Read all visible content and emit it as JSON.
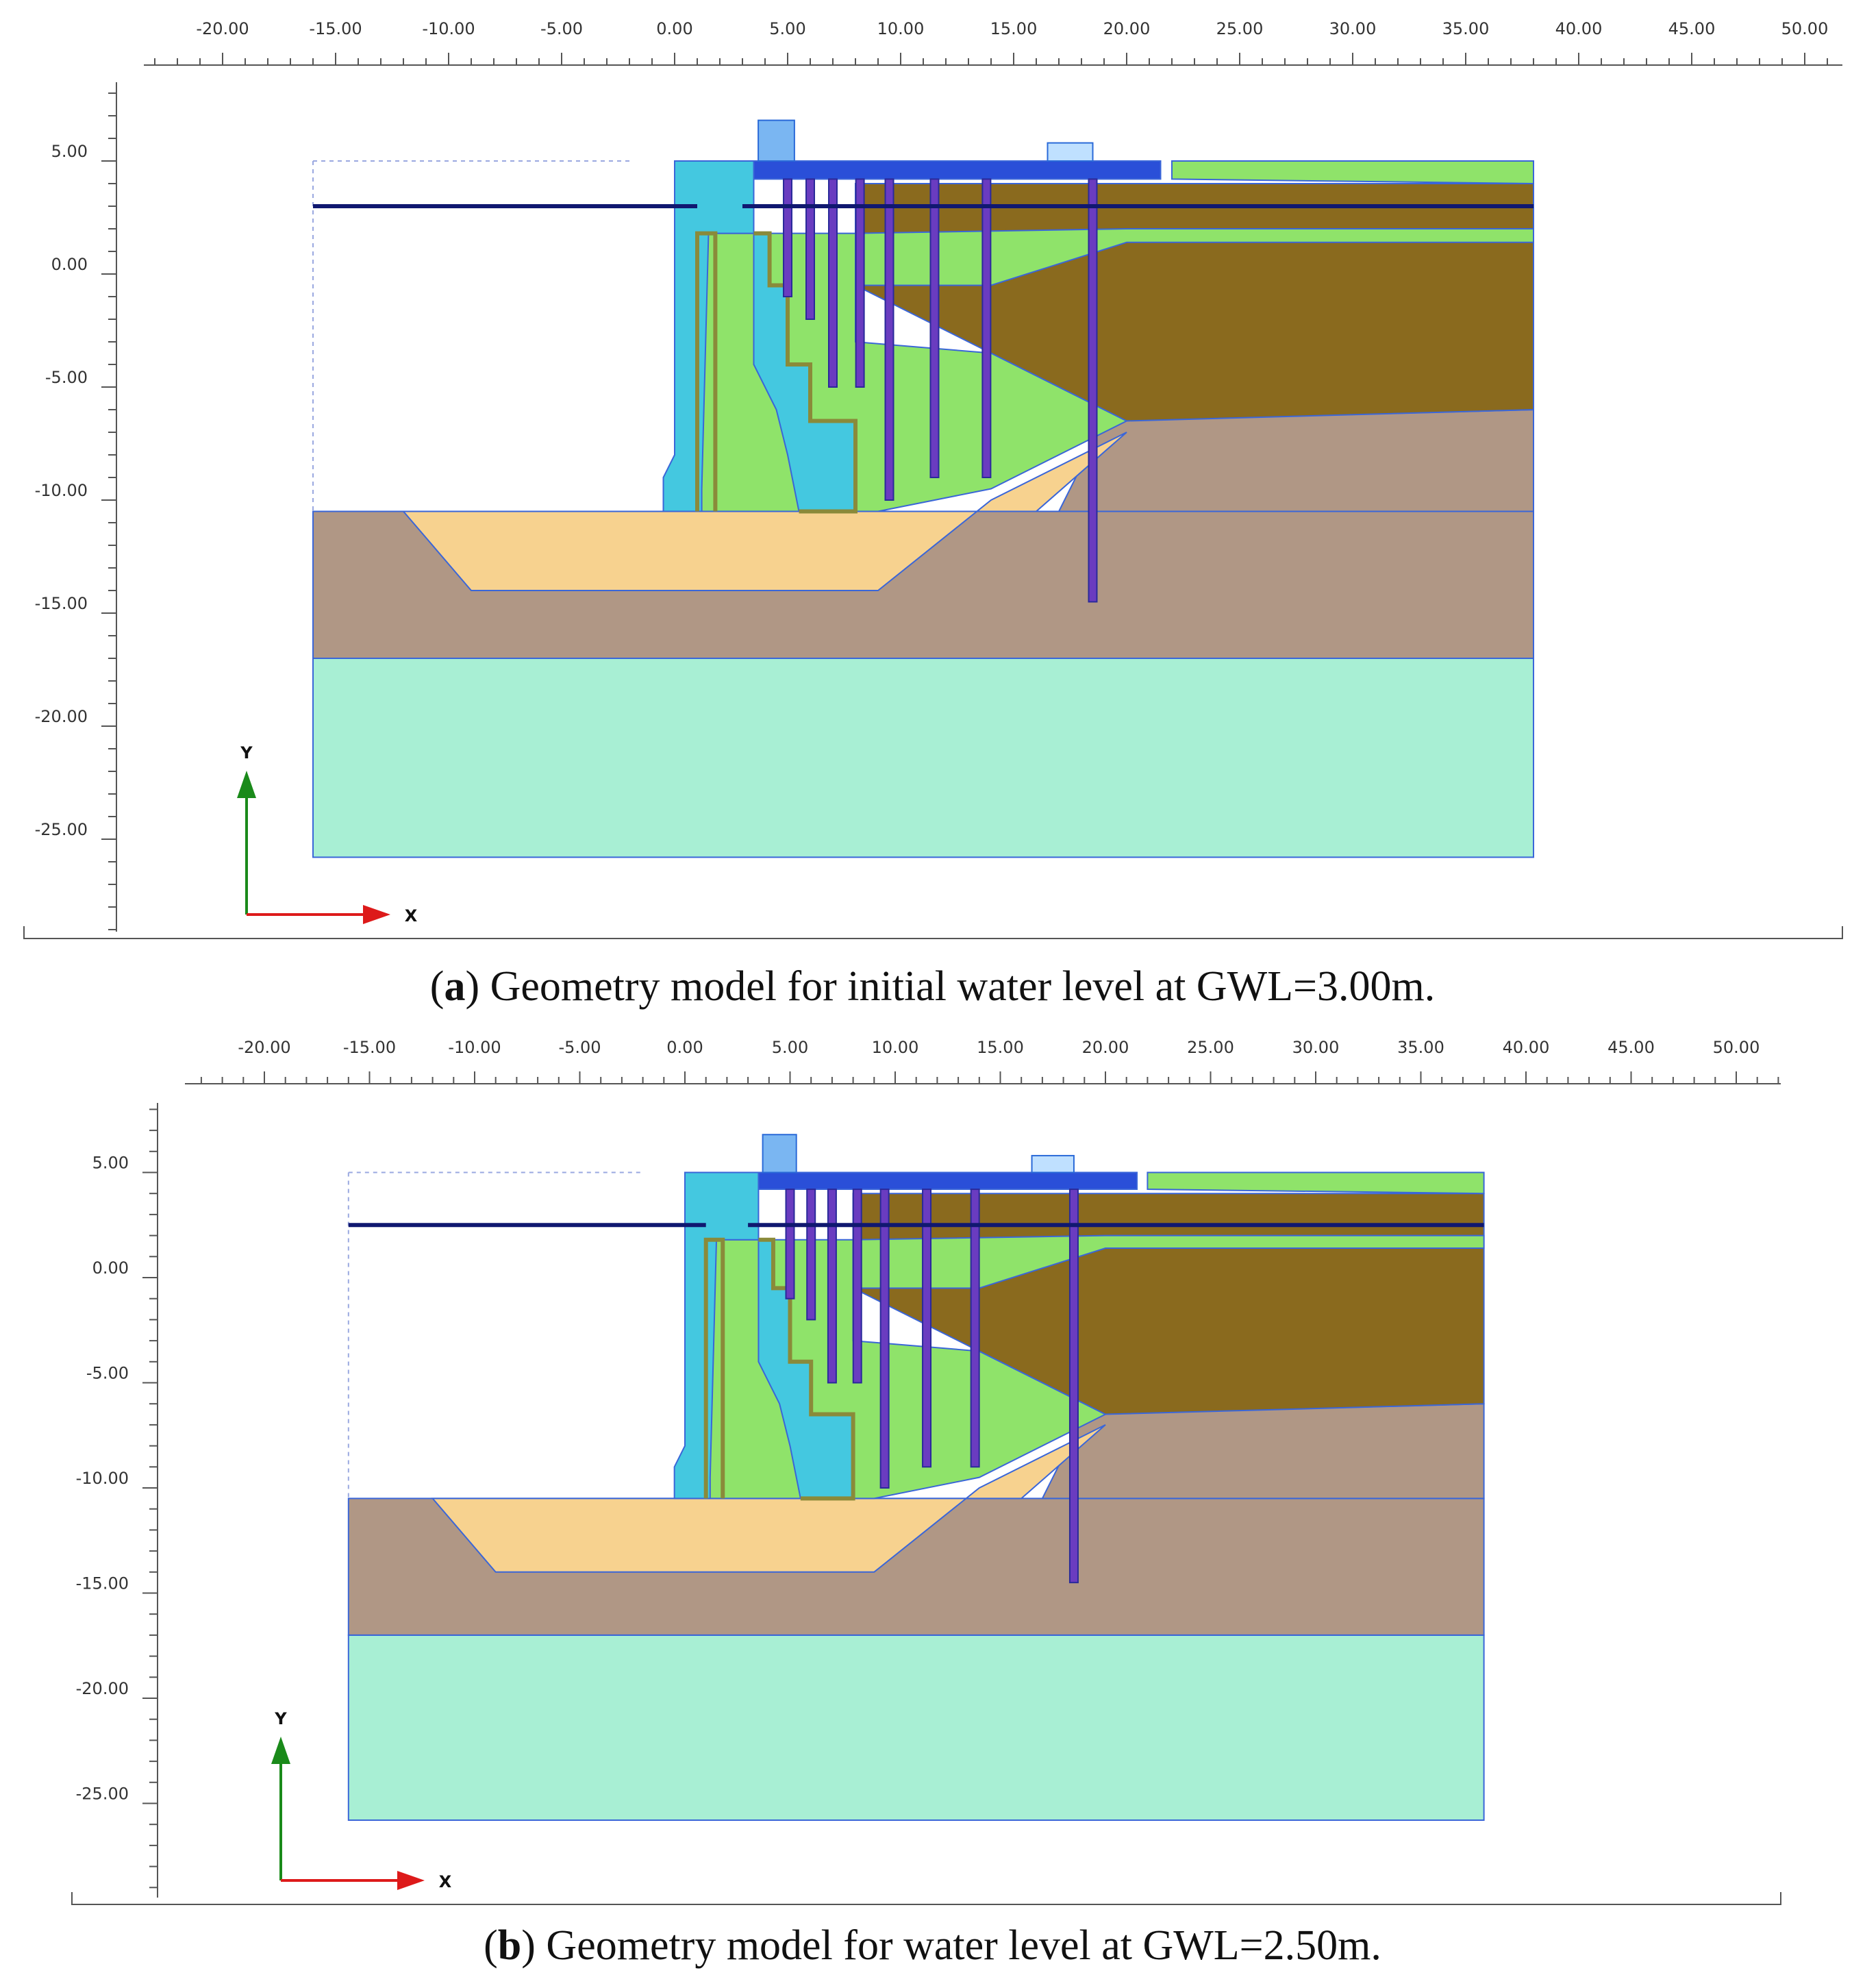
{
  "panels": [
    {
      "id": "a",
      "caption_letter": "a",
      "caption_text": "Geometry model for initial water level at GWL=3.00m.",
      "x_ticks": [
        "-20.00",
        "-15.00",
        "-10.00",
        "-5.00",
        "0.00",
        "5.00",
        "10.00",
        "15.00",
        "20.00",
        "25.00",
        "30.00",
        "35.00",
        "40.00",
        "45.00",
        "50.00"
      ],
      "y_ticks": [
        "5.00",
        "0.00",
        "-5.00",
        "-10.00",
        "-15.00",
        "-20.00",
        "-25.00"
      ],
      "axis_y_letter": "Y",
      "axis_x_letter": "X",
      "gwl": 3.0
    },
    {
      "id": "b",
      "caption_letter": "b",
      "caption_text": "Geometry model for water level at GWL=2.50m.",
      "x_ticks": [
        "-20.00",
        "-15.00",
        "-10.00",
        "-5.00",
        "0.00",
        "5.00",
        "10.00",
        "15.00",
        "20.00",
        "25.00",
        "30.00",
        "35.00",
        "40.00",
        "45.00",
        "50.00"
      ],
      "y_ticks": [
        "5.00",
        "0.00",
        "-5.00",
        "-10.00",
        "-15.00",
        "-20.00",
        "-25.00"
      ],
      "axis_y_letter": "Y",
      "axis_x_letter": "X",
      "gwl": 2.5
    }
  ],
  "colors": {
    "sand_fill": "#f7d28f",
    "clay_brown": "#8a6a1e",
    "soft_soil": "#b09785",
    "bottom_layer": "#a8efd4",
    "green_fill": "#8fe36a",
    "cyan_block": "#44c8e0",
    "water_line": "#101870",
    "pile_purple": "#6a3cc0",
    "deck_blue": "#2a4fd8",
    "outline": "#3a66d8"
  }
}
